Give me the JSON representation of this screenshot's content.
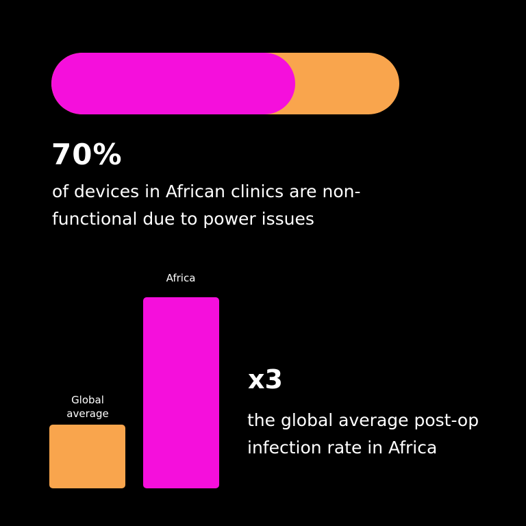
{
  "colors": {
    "background": "#000000",
    "magenta": "#f50fdc",
    "orange": "#f9a54d",
    "text": "#ffffff"
  },
  "chart_data": [
    {
      "type": "bar",
      "values": [
        70
      ],
      "max": 100,
      "title": "70%",
      "caption": "of devices in African clinics are non-functional due to power issues"
    },
    {
      "type": "bar",
      "categories": [
        "Global average",
        "Africa"
      ],
      "values": [
        1,
        3
      ],
      "title": "x3",
      "caption": "the global average post-op infection rate in Africa"
    }
  ]
}
